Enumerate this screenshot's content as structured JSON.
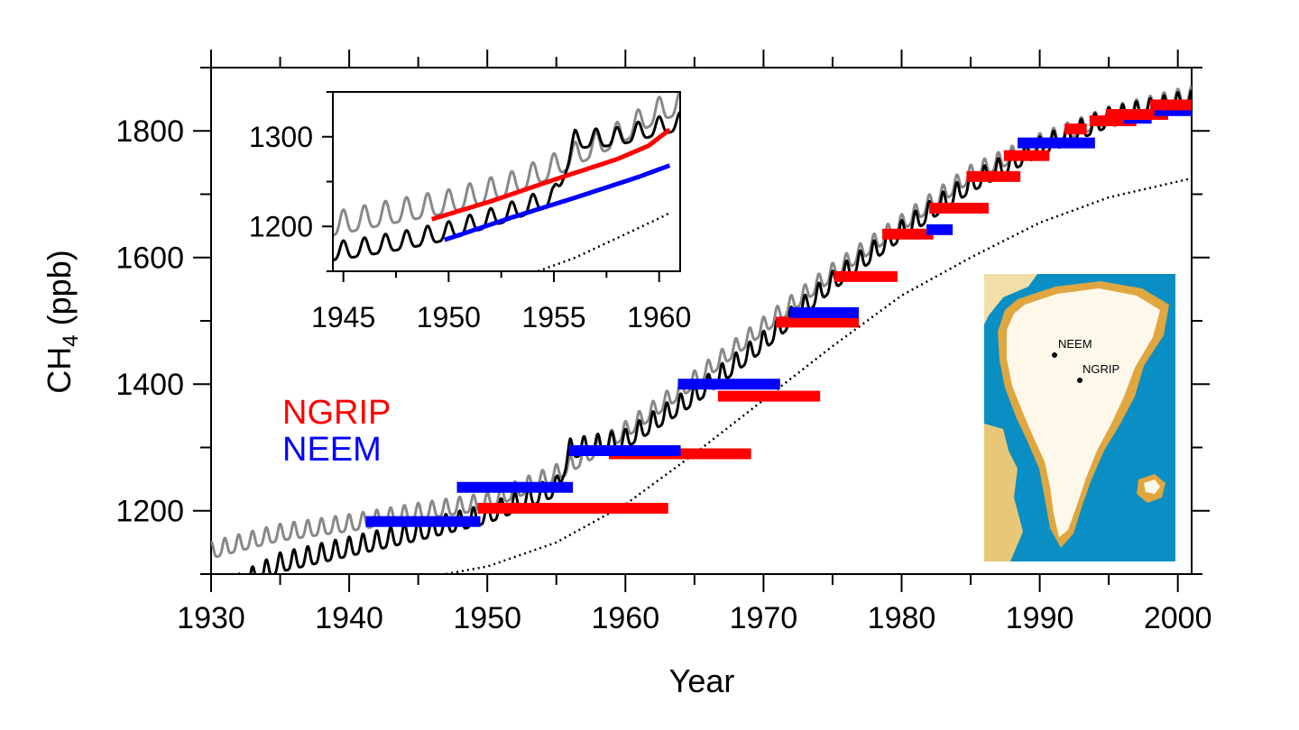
{
  "chart_data": [
    {
      "id": "main",
      "type": "line",
      "xlabel": "Year",
      "ylabel_main": "CH",
      "ylabel_sub": "4",
      "ylabel_unit": " (ppb)",
      "xlim": [
        1930,
        2001
      ],
      "ylim": [
        1100,
        1900
      ],
      "xticks": [
        1930,
        1940,
        1950,
        1960,
        1970,
        1980,
        1990,
        2000
      ],
      "yticks": [
        1200,
        1400,
        1600,
        1800
      ],
      "legend": [
        {
          "label": "NGRIP",
          "color": "#ff0000"
        },
        {
          "label": "NEEM",
          "color": "#0000ff"
        }
      ],
      "lines": [
        {
          "color": "#888888",
          "seasonal_amp": 13,
          "points": [
            [
              1930,
              1135
            ],
            [
              1935,
              1163
            ],
            [
              1940,
              1178
            ],
            [
              1945,
              1196
            ],
            [
              1950,
              1212
            ],
            [
              1955,
              1257
            ],
            [
              1960,
              1325
            ],
            [
              1965,
              1405
            ],
            [
              1970,
              1490
            ],
            [
              1975,
              1575
            ],
            [
              1980,
              1652
            ],
            [
              1985,
              1730
            ],
            [
              1990,
              1780
            ],
            [
              1995,
              1822
            ],
            [
              2000,
              1850
            ],
            [
              2001,
              1855
            ]
          ]
        },
        {
          "color": "#000000",
          "seasonal_amp": 15,
          "points": [
            [
              1932,
              1082
            ],
            [
              1935,
              1115
            ],
            [
              1940,
              1140
            ],
            [
              1945,
              1165
            ],
            [
              1950,
              1192
            ],
            [
              1955,
              1235
            ],
            [
              1956,
              1295
            ],
            [
              1960,
              1310
            ],
            [
              1965,
              1380
            ],
            [
              1970,
              1465
            ],
            [
              1975,
              1560
            ],
            [
              1980,
              1640
            ],
            [
              1985,
              1715
            ],
            [
              1990,
              1772
            ],
            [
              1995,
              1818
            ],
            [
              2000,
              1842
            ],
            [
              2001,
              1845
            ]
          ]
        },
        {
          "color": "#000000",
          "dotted": true,
          "points": [
            [
              1947,
              1100
            ],
            [
              1950,
              1112
            ],
            [
              1955,
              1150
            ],
            [
              1960,
              1210
            ],
            [
              1965,
              1290
            ],
            [
              1970,
              1375
            ],
            [
              1975,
              1460
            ],
            [
              1980,
              1540
            ],
            [
              1985,
              1600
            ],
            [
              1990,
              1655
            ],
            [
              1995,
              1695
            ],
            [
              2000,
              1720
            ],
            [
              2001,
              1725
            ]
          ]
        }
      ],
      "bars": [
        {
          "series": "NEEM",
          "x0": 1941.2,
          "x1": 1949.5,
          "y": 1183
        },
        {
          "series": "NGRIP",
          "x0": 1949.3,
          "x1": 1963.1,
          "y": 1204
        },
        {
          "series": "NEEM",
          "x0": 1947.8,
          "x1": 1956.2,
          "y": 1237
        },
        {
          "series": "NGRIP",
          "x0": 1958.8,
          "x1": 1969.1,
          "y": 1290
        },
        {
          "series": "NEEM",
          "x0": 1955.9,
          "x1": 1964.0,
          "y": 1295
        },
        {
          "series": "NGRIP",
          "x0": 1966.7,
          "x1": 1974.1,
          "y": 1381
        },
        {
          "series": "NEEM",
          "x0": 1963.8,
          "x1": 1971.2,
          "y": 1400
        },
        {
          "series": "NGRIP",
          "x0": 1970.9,
          "x1": 1976.9,
          "y": 1498
        },
        {
          "series": "NEEM",
          "x0": 1971.9,
          "x1": 1976.9,
          "y": 1513
        },
        {
          "series": "NGRIP",
          "x0": 1975.1,
          "x1": 1979.7,
          "y": 1570
        },
        {
          "series": "NGRIP",
          "x0": 1978.6,
          "x1": 1982.3,
          "y": 1637
        },
        {
          "series": "NEEM",
          "x0": 1981.8,
          "x1": 1983.7,
          "y": 1644
        },
        {
          "series": "NGRIP",
          "x0": 1982.0,
          "x1": 1986.3,
          "y": 1678
        },
        {
          "series": "NGRIP",
          "x0": 1984.7,
          "x1": 1988.6,
          "y": 1728
        },
        {
          "series": "NGRIP",
          "x0": 1987.4,
          "x1": 1990.7,
          "y": 1761
        },
        {
          "series": "NEEM",
          "x0": 1988.4,
          "x1": 1994.0,
          "y": 1781
        },
        {
          "series": "NGRIP",
          "x0": 1991.8,
          "x1": 1993.4,
          "y": 1803
        },
        {
          "series": "NGRIP",
          "x0": 1993.6,
          "x1": 1997.0,
          "y": 1816
        },
        {
          "series": "NEEM",
          "x0": 1996.1,
          "x1": 1998.1,
          "y": 1820
        },
        {
          "series": "NGRIP",
          "x0": 1994.8,
          "x1": 1999.3,
          "y": 1826
        },
        {
          "series": "NEEM",
          "x0": 1998.3,
          "x1": 2001,
          "y": 1832
        },
        {
          "series": "NGRIP",
          "x0": 1998.0,
          "x1": 2001,
          "y": 1841
        }
      ]
    },
    {
      "id": "inset",
      "type": "line",
      "xlim": [
        1944.5,
        1961
      ],
      "ylim": [
        1150,
        1350
      ],
      "xticks": [
        1945,
        1950,
        1955,
        1960
      ],
      "yticks": [
        1200,
        1300
      ],
      "lines": [
        {
          "color": "#888888",
          "seasonal_amp": 13,
          "points": [
            [
              1944.5,
              1200
            ],
            [
              1947,
              1212
            ],
            [
              1950,
              1225
            ],
            [
              1953,
              1245
            ],
            [
              1955,
              1265
            ],
            [
              1956,
              1278
            ],
            [
              1958,
              1300
            ],
            [
              1960,
              1328
            ],
            [
              1961,
              1335
            ]
          ]
        },
        {
          "color": "#000000",
          "seasonal_amp": 10,
          "points": [
            [
              1944.5,
              1170
            ],
            [
              1946,
              1175
            ],
            [
              1948,
              1183
            ],
            [
              1950,
              1193
            ],
            [
              1953,
              1215
            ],
            [
              1955,
              1232
            ],
            [
              1956,
              1295
            ],
            [
              1958,
              1298
            ],
            [
              1960,
              1310
            ],
            [
              1961,
              1315
            ]
          ]
        },
        {
          "color": "#ff0000",
          "points": [
            [
              1949.2,
              1208
            ],
            [
              1952,
              1228
            ],
            [
              1955,
              1252
            ],
            [
              1958,
              1275
            ],
            [
              1959.5,
              1290
            ],
            [
              1960.5,
              1308
            ]
          ]
        },
        {
          "color": "#0000ff",
          "points": [
            [
              1949.8,
              1185
            ],
            [
              1953,
              1210
            ],
            [
              1956,
              1232
            ],
            [
              1959,
              1255
            ],
            [
              1960.5,
              1268
            ]
          ]
        },
        {
          "color": "#000000",
          "dotted": true,
          "points": [
            [
              1954,
              1148
            ],
            [
              1956,
              1165
            ],
            [
              1958,
              1187
            ],
            [
              1960,
              1209
            ],
            [
              1960.5,
              1215
            ]
          ]
        }
      ]
    }
  ],
  "map": {
    "labels": [
      "NEEM",
      "NGRIP"
    ],
    "colors": {
      "ocean": "#0a8fc4",
      "ice": "#fdf8ea",
      "land": "#e0a640"
    }
  }
}
